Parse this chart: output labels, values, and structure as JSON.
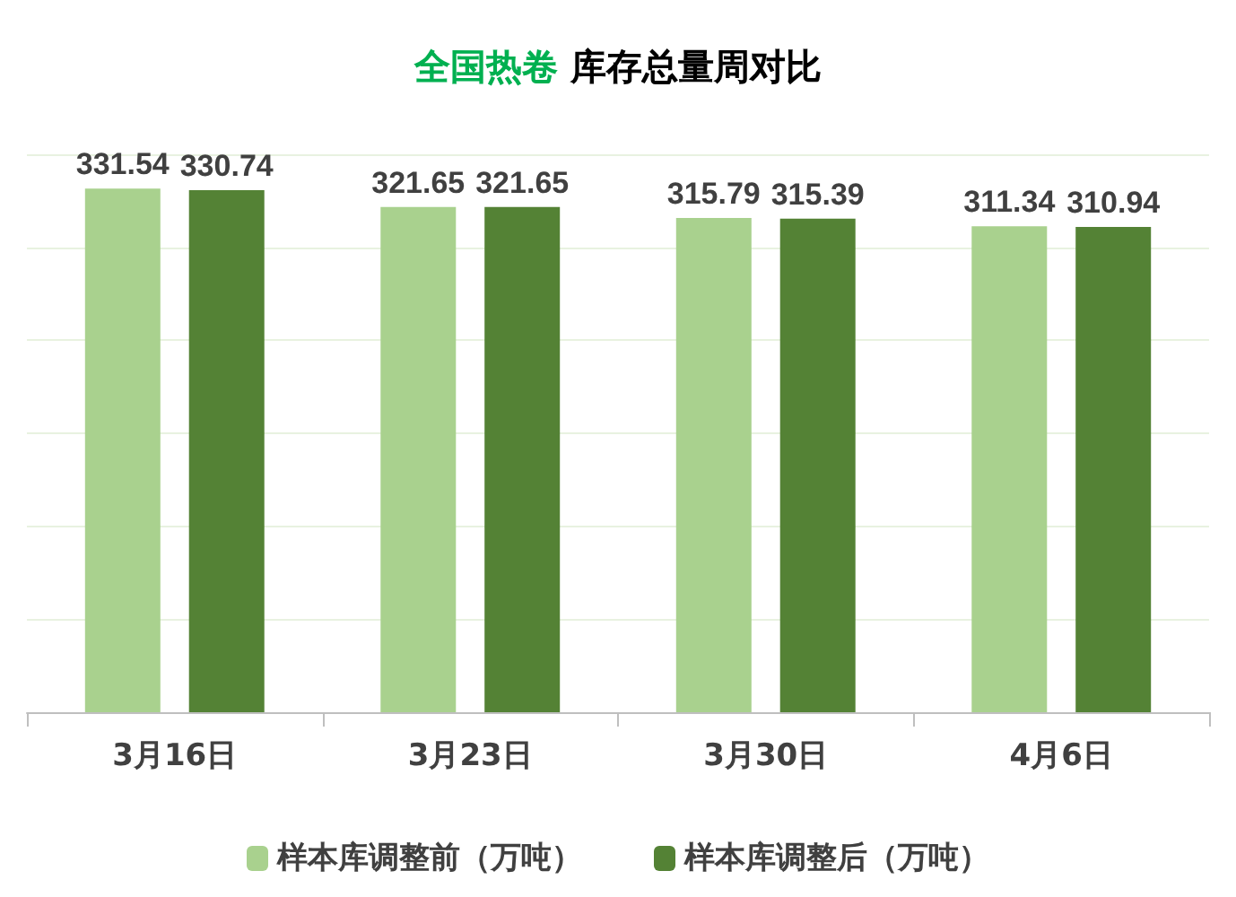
{
  "chart_data": {
    "type": "bar",
    "title": "全国热卷 库存总量周对比",
    "categories": [
      "3月16日",
      "3月23日",
      "3月30日",
      "4月6日"
    ],
    "series": [
      {
        "name": "样本库调整前（万吨）",
        "color": "#a9d18e",
        "values": [
          331.54,
          321.65,
          315.79,
          311.34
        ]
      },
      {
        "name": "样本库调整后（万吨）",
        "color": "#548235",
        "values": [
          330.74,
          321.65,
          315.39,
          310.94
        ]
      }
    ],
    "ylim": [
      50,
      350
    ],
    "yticks": [
      {
        "value": 100,
        "label": null
      },
      {
        "value": 150,
        "label": null
      },
      {
        "value": 200,
        "label": null
      },
      {
        "value": 250,
        "label": null
      },
      {
        "value": 300,
        "label": null
      },
      {
        "value": 350,
        "label": null
      }
    ],
    "data_labels": true,
    "legend": "bottom",
    "tick_labels": "x",
    "grid": "y"
  }
}
